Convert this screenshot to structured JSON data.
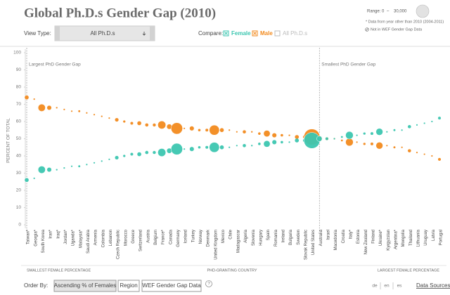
{
  "header": {
    "title": "Global Ph.D.s Gender Gap (2010)",
    "range_label": "Range:",
    "range_separator": "–",
    "notes": [
      "* Data from year other than 2010 (2004-2011)",
      "Not in WEF Gender Gap Data"
    ]
  },
  "controls": {
    "view_type_label": "View Type:",
    "view_type_value": "All Ph.D.s",
    "compare_label": "Compare:",
    "compare_all": "All Ph.D.s"
  },
  "chart_data": {
    "type": "bubble",
    "y_label": "PERCENT OF TOTAL",
    "x_label": "PHD-GRANTING COUNTRY",
    "left_note": "SMALLEST FEMALE PERCENTAGE",
    "right_note": "LARGEST FEMALE PERCENTAGE",
    "largest_gap_label": "Largest PhD Gender Gap",
    "smallest_gap_label": "Smallest PhD Gender Gap",
    "ylim": [
      0,
      100
    ],
    "yticks": [
      0,
      10,
      20,
      30,
      40,
      50,
      60,
      70,
      80,
      90,
      100
    ],
    "size_range": [
      0,
      {
        "value": 30000,
        "label": "30,000"
      }
    ],
    "categories": [
      "Taiwan*",
      "Georgia*",
      "South Korea",
      "Iran*",
      "Iraq*",
      "Jordan*",
      "Uganda*",
      "Malaysia*",
      "Saudi Arabia",
      "Armenia",
      "Colombia",
      "Lebanon",
      "Czech Republic",
      "Morocco",
      "Greece",
      "Switzerland",
      "Austria",
      "Belgium",
      "France*",
      "Canada",
      "Germany",
      "Iceland",
      "Turkey",
      "Norway",
      "Denmark",
      "United Kingdom",
      "Mexico",
      "Chile",
      "Madagascar",
      "Algeria",
      "Slovenia",
      "Hungary",
      "Spain",
      "Romania",
      "Ireland",
      "Bulgaria",
      "Sweden",
      "Slovak Republic",
      "United States",
      "Australia",
      "Israel",
      "Macedonia",
      "Croatia",
      "Italy*",
      "Estonia",
      "New Zealand",
      "Finland",
      "Ukraine*",
      "Kyrgyzstan",
      "Argentina*",
      "Mongolia",
      "Thailand",
      "Lithuania",
      "Uruguay",
      "Latvia",
      "Portugal"
    ],
    "series": [
      {
        "name": "Female",
        "color": "#3cc6b0",
        "values": [
          26,
          27,
          32,
          32,
          32,
          33,
          34,
          34,
          35,
          36,
          37,
          38,
          39,
          40,
          41,
          41,
          42,
          42,
          42,
          43,
          44,
          44,
          44,
          45,
          45,
          45,
          45,
          45,
          46,
          46,
          46,
          47,
          47,
          48,
          48,
          48,
          49,
          49,
          49,
          50,
          50,
          50,
          51,
          52,
          52,
          53,
          53,
          54,
          54,
          55,
          55,
          57,
          58,
          59,
          60,
          62
        ]
      },
      {
        "name": "Male",
        "color": "#f28a1e",
        "values": [
          74,
          73,
          68,
          68,
          68,
          67,
          66,
          66,
          65,
          64,
          63,
          62,
          61,
          60,
          59,
          59,
          58,
          58,
          58,
          57,
          56,
          56,
          56,
          55,
          55,
          55,
          55,
          55,
          54,
          54,
          54,
          53,
          53,
          52,
          52,
          52,
          51,
          51,
          51,
          50,
          50,
          50,
          49,
          48,
          48,
          47,
          47,
          46,
          46,
          45,
          45,
          43,
          42,
          41,
          40,
          38
        ]
      }
    ],
    "sizes": [
      3500,
      300,
      10000,
      4000,
      500,
      300,
      100,
      800,
      300,
      300,
      200,
      100,
      2500,
      1000,
      1500,
      3500,
      2000,
      1800,
      12000,
      5000,
      25000,
      50,
      4000,
      1200,
      1500,
      19000,
      3500,
      500,
      100,
      2000,
      500,
      1200,
      8000,
      4000,
      1200,
      500,
      3000,
      1500,
      48000,
      5500,
      1500,
      100,
      700,
      11000,
      250,
      1000,
      1500,
      9000,
      300,
      800,
      300,
      2000,
      400,
      50,
      200,
      1500
    ]
  },
  "footer": {
    "order_by_label": "Order By:",
    "order_buttons": [
      "Ascending % of Females",
      "Region",
      "WEF Gender Gap Data"
    ],
    "help": "?",
    "languages": [
      "de",
      "en",
      "es"
    ],
    "data_sources": "Data Sources"
  }
}
